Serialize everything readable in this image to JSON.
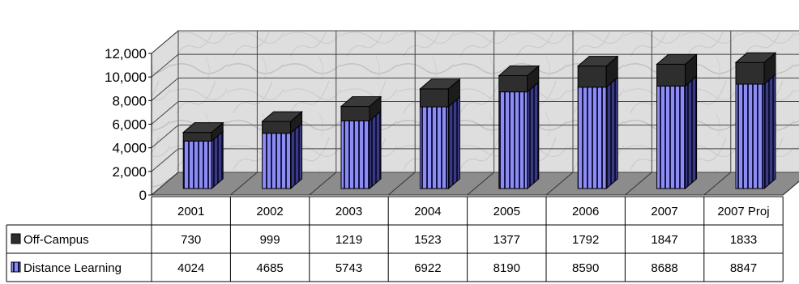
{
  "chart_data": {
    "type": "bar",
    "stacked": true,
    "three_d": true,
    "categories": [
      "2001",
      "2002",
      "2003",
      "2004",
      "2005",
      "2006",
      "2007",
      "2007 Proj"
    ],
    "series": [
      {
        "name": "Off-Campus",
        "values": [
          730,
          999,
          1219,
          1523,
          1377,
          1792,
          1847,
          1833
        ],
        "color": "#2e2e2e",
        "pattern": "solid"
      },
      {
        "name": "Distance Learning",
        "values": [
          4024,
          4685,
          5743,
          6922,
          8190,
          8590,
          8688,
          8847
        ],
        "color": "#8c8cf2",
        "pattern": "vertical-stripes"
      }
    ],
    "stack_order": [
      "Distance Learning",
      "Off-Campus"
    ],
    "y_ticks": [
      "12,000",
      "10,000",
      "8,000",
      "6,000",
      "4,000",
      "2,000",
      "0"
    ],
    "ylim": [
      0,
      12000
    ],
    "grid": true,
    "data_table": true,
    "legend": "data-table-left",
    "colors": {
      "off_campus": "#2e2e2e",
      "distance_learning": "#8c8cf2",
      "distance_learning_stripe": "#15154a",
      "floor": "#8c8c8c",
      "wall": "#dcdcdc"
    }
  }
}
